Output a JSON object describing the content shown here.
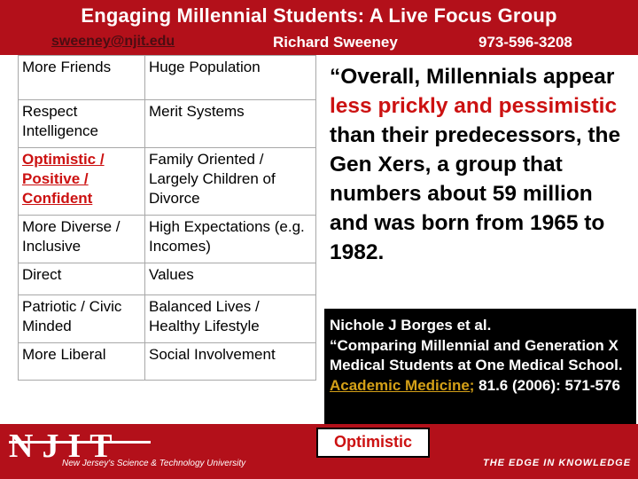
{
  "header": {
    "title": "Engaging Millennial Students: A Live Focus Group",
    "email": "sweeney@njit.edu",
    "author": "Richard Sweeney",
    "phone": "973-596-3208"
  },
  "traits": [
    {
      "left": "More Friends",
      "right": "Huge Population"
    },
    {
      "left": "Respect Intelligence",
      "right": "Merit Systems"
    },
    {
      "left": "Optimistic / Positive / Confident",
      "right": "Family Oriented / Largely Children of Divorce",
      "highlight_left": true
    },
    {
      "left": "More Diverse / Inclusive",
      "right": "High Expectations (e.g. Incomes)"
    },
    {
      "left": "Direct",
      "right": "Values"
    },
    {
      "left": "Patriotic / Civic Minded",
      "right": "Balanced Lives / Healthy Lifestyle"
    },
    {
      "left": "More Liberal",
      "right": "Social Involvement"
    }
  ],
  "quote": {
    "part1": "“Overall, Millennials appear ",
    "highlight": "less prickly and pessimistic",
    "part2": " than their predecessors, the Gen Xers, a group that numbers about 59 million and was born from 1965 to 1982."
  },
  "citation": {
    "authors": "Nichole J Borges et al.",
    "title": "“Comparing Millennial and Generation X Medical Students at One Medical School.",
    "journal": " Academic Medicine;",
    "details": " 81.6 (2006): 571-576"
  },
  "badge": "Optimistic",
  "footer": {
    "logo": "NJIT",
    "university": "New Jersey's Science & Technology University",
    "tagline": "THE EDGE IN KNOWLEDGE"
  },
  "colors": {
    "brand_red": "#b3101a",
    "highlight_red": "#cc1111",
    "journal_gold": "#d4a017"
  }
}
